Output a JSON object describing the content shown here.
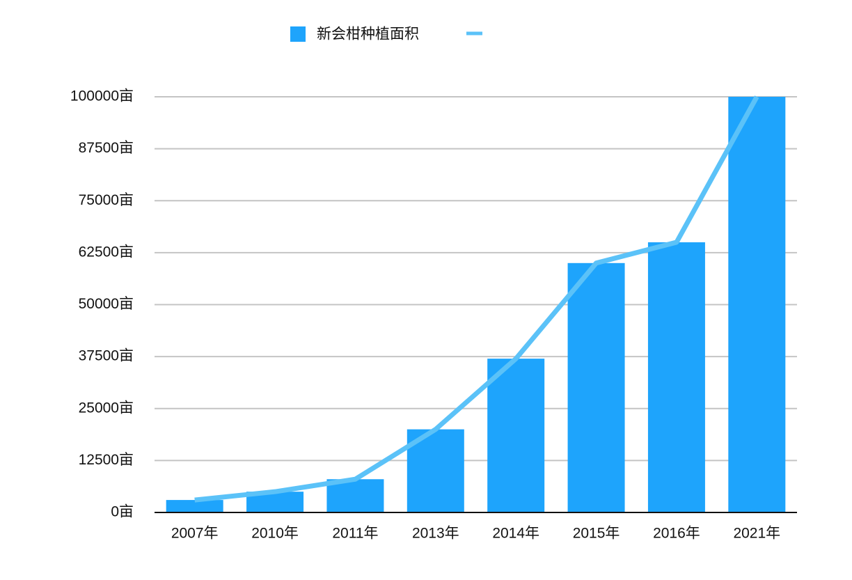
{
  "chart_data": {
    "type": "bar",
    "categories": [
      "2007年",
      "2010年",
      "2011年",
      "2013年",
      "2014年",
      "2015年",
      "2016年",
      "2021年"
    ],
    "series": [
      {
        "name": "新会柑种植面积",
        "type": "bar",
        "color": "#1ea4fc",
        "values": [
          3000,
          5000,
          8000,
          20000,
          37000,
          60000,
          65000,
          100000
        ]
      },
      {
        "type": "line",
        "color": "#5bc2f8",
        "values": [
          3000,
          5000,
          8000,
          20000,
          37000,
          60000,
          65000,
          100000
        ]
      }
    ],
    "ylim": [
      0,
      100000
    ],
    "yticks": [
      {
        "value": 0,
        "label": "0亩"
      },
      {
        "value": 12500,
        "label": "12500亩"
      },
      {
        "value": 25000,
        "label": "25000亩"
      },
      {
        "value": 37500,
        "label": "37500亩"
      },
      {
        "value": 50000,
        "label": "50000亩"
      },
      {
        "value": 62500,
        "label": "62500亩"
      },
      {
        "value": 75000,
        "label": "75000亩"
      },
      {
        "value": 87500,
        "label": "87500亩"
      },
      {
        "value": 100000,
        "label": "100000亩"
      }
    ],
    "grid": true,
    "legend": "top"
  }
}
